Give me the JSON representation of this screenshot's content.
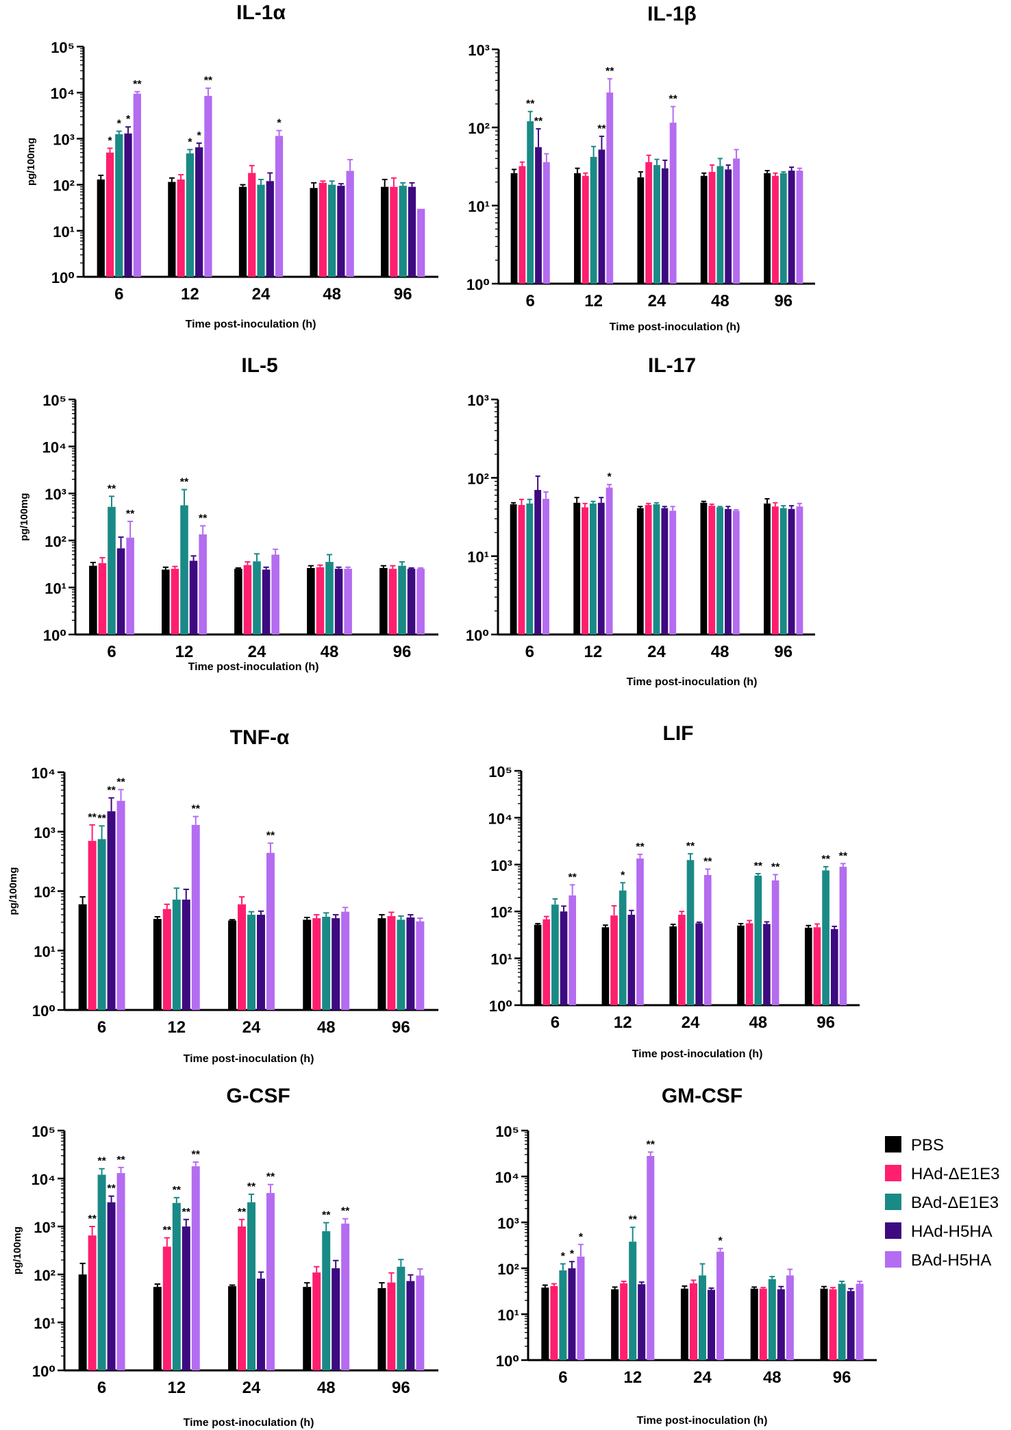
{
  "figure": {
    "xlabel": "Time post-inoculation (h)",
    "ylabel": "pg/100mg",
    "categories": [
      "6",
      "12",
      "24",
      "48",
      "96"
    ],
    "series_colors": [
      "#000000",
      "#ff1f6e",
      "#1a8a86",
      "#3d0a80",
      "#b46cf0"
    ],
    "legend": [
      "PBS",
      "HAd-ΔE1E3",
      "BAd-ΔE1E3",
      "HAd-H5HA",
      "BAd-H5HA"
    ]
  },
  "chart_data": [
    {
      "type": "bar",
      "yscale": "log",
      "title": "IL-1α",
      "ylim_exponents": [
        0,
        5
      ],
      "ylabel": "pg/100mg",
      "xlabel": "Time post-inoculation (h)",
      "categories": [
        "6",
        "12",
        "24",
        "48",
        "96"
      ],
      "series": [
        {
          "name": "PBS",
          "values": [
            130,
            115,
            90,
            85,
            90
          ],
          "errors": [
            30,
            25,
            10,
            25,
            40
          ]
        },
        {
          "name": "HAd-ΔE1E3",
          "values": [
            500,
            130,
            180,
            110,
            90
          ],
          "errors": [
            120,
            35,
            80,
            10,
            50
          ]
        },
        {
          "name": "BAd-ΔE1E3",
          "values": [
            1250,
            480,
            100,
            100,
            95
          ],
          "errors": [
            200,
            100,
            30,
            20,
            15
          ]
        },
        {
          "name": "HAd-H5HA",
          "values": [
            1300,
            650,
            120,
            95,
            90
          ],
          "errors": [
            500,
            150,
            60,
            10,
            20
          ]
        },
        {
          "name": "BAd-H5HA",
          "values": [
            9500,
            8500,
            1150,
            200,
            30
          ],
          "errors": [
            1000,
            4000,
            350,
            150,
            0
          ]
        }
      ],
      "annotations": [
        {
          "category": "6",
          "series": "HAd-ΔE1E3",
          "text": "*"
        },
        {
          "category": "6",
          "series": "BAd-ΔE1E3",
          "text": "*"
        },
        {
          "category": "6",
          "series": "HAd-H5HA",
          "text": "*"
        },
        {
          "category": "6",
          "series": "BAd-H5HA",
          "text": "**"
        },
        {
          "category": "12",
          "series": "BAd-ΔE1E3",
          "text": "*"
        },
        {
          "category": "12",
          "series": "HAd-H5HA",
          "text": "*"
        },
        {
          "category": "12",
          "series": "BAd-H5HA",
          "text": "**"
        },
        {
          "category": "24",
          "series": "BAd-H5HA",
          "text": "*"
        }
      ]
    },
    {
      "type": "bar",
      "yscale": "log",
      "title": "IL-1β",
      "ylim_exponents": [
        0,
        3
      ],
      "ylabel": "",
      "xlabel": "Time post-inoculation (h)",
      "categories": [
        "6",
        "12",
        "24",
        "48",
        "96"
      ],
      "series": [
        {
          "name": "PBS",
          "values": [
            26,
            26,
            23,
            24,
            26
          ],
          "errors": [
            3,
            4,
            4,
            2,
            2
          ]
        },
        {
          "name": "HAd-ΔE1E3",
          "values": [
            32,
            24,
            36,
            27,
            24
          ],
          "errors": [
            4,
            2,
            8,
            6,
            2
          ]
        },
        {
          "name": "BAd-ΔE1E3",
          "values": [
            120,
            42,
            33,
            32,
            26
          ],
          "errors": [
            40,
            15,
            6,
            8,
            1
          ]
        },
        {
          "name": "HAd-H5HA",
          "values": [
            56,
            52,
            30,
            29,
            28
          ],
          "errors": [
            40,
            25,
            8,
            4,
            3
          ]
        },
        {
          "name": "BAd-H5HA",
          "values": [
            36,
            280,
            115,
            40,
            28
          ],
          "errors": [
            10,
            140,
            70,
            12,
            2
          ]
        }
      ],
      "annotations": [
        {
          "category": "6",
          "series": "BAd-ΔE1E3",
          "text": "**"
        },
        {
          "category": "6",
          "series": "HAd-H5HA",
          "text": "**"
        },
        {
          "category": "12",
          "series": "HAd-H5HA",
          "text": "**"
        },
        {
          "category": "12",
          "series": "BAd-H5HA",
          "text": "**"
        },
        {
          "category": "24",
          "series": "BAd-H5HA",
          "text": "**"
        }
      ]
    },
    {
      "type": "bar",
      "yscale": "log",
      "title": "IL-5",
      "ylim_exponents": [
        0,
        5
      ],
      "ylabel": "pg/100mg",
      "xlabel": "Time post-inoculation (h)",
      "categories": [
        "6",
        "12",
        "24",
        "48",
        "96"
      ],
      "series": [
        {
          "name": "PBS",
          "values": [
            29,
            24,
            25,
            26,
            26
          ],
          "errors": [
            5,
            3,
            1,
            3,
            3
          ]
        },
        {
          "name": "HAd-ΔE1E3",
          "values": [
            33,
            25,
            30,
            27,
            25
          ],
          "errors": [
            10,
            3,
            5,
            3,
            4
          ]
        },
        {
          "name": "BAd-ΔE1E3",
          "values": [
            520,
            560,
            36,
            35,
            29
          ],
          "errors": [
            350,
            650,
            16,
            15,
            6
          ]
        },
        {
          "name": "HAd-H5HA",
          "values": [
            68,
            37,
            24,
            25,
            25
          ],
          "errors": [
            50,
            10,
            3,
            2,
            1
          ]
        },
        {
          "name": "BAd-H5HA",
          "values": [
            115,
            135,
            50,
            25,
            25
          ],
          "errors": [
            140,
            70,
            15,
            2,
            1
          ]
        }
      ],
      "annotations": [
        {
          "category": "6",
          "series": "BAd-ΔE1E3",
          "text": "**"
        },
        {
          "category": "6",
          "series": "BAd-H5HA",
          "text": "**"
        },
        {
          "category": "12",
          "series": "BAd-ΔE1E3",
          "text": "**"
        },
        {
          "category": "12",
          "series": "BAd-H5HA",
          "text": "**"
        }
      ]
    },
    {
      "type": "bar",
      "yscale": "log",
      "title": "IL-17",
      "ylim_exponents": [
        0,
        3
      ],
      "ylabel": "",
      "xlabel": "Time post-inoculation (h)",
      "categories": [
        "6",
        "12",
        "24",
        "48",
        "96"
      ],
      "series": [
        {
          "name": "PBS",
          "values": [
            46,
            48,
            41,
            48,
            47
          ],
          "errors": [
            2,
            8,
            2,
            2,
            7
          ]
        },
        {
          "name": "HAd-ΔE1E3",
          "values": [
            45,
            42,
            45,
            44,
            43
          ],
          "errors": [
            8,
            5,
            2,
            2,
            5
          ]
        },
        {
          "name": "BAd-ΔE1E3",
          "values": [
            47,
            47,
            46,
            42,
            41
          ],
          "errors": [
            6,
            3,
            2,
            1,
            3
          ]
        },
        {
          "name": "HAd-H5HA",
          "values": [
            70,
            48,
            41,
            40,
            40
          ],
          "errors": [
            35,
            8,
            2,
            3,
            4
          ]
        },
        {
          "name": "BAd-H5HA",
          "values": [
            54,
            75,
            38,
            38,
            43
          ],
          "errors": [
            12,
            7,
            5,
            1,
            4
          ]
        }
      ],
      "annotations": [
        {
          "category": "12",
          "series": "BAd-H5HA",
          "text": "*"
        }
      ]
    },
    {
      "type": "bar",
      "yscale": "log",
      "title": "TNF-α",
      "ylim_exponents": [
        0,
        4
      ],
      "ylabel": "pg/100mg",
      "xlabel": "Time post-inoculation (h)",
      "categories": [
        "6",
        "12",
        "24",
        "48",
        "96"
      ],
      "series": [
        {
          "name": "PBS",
          "values": [
            60,
            34,
            32,
            33,
            35
          ],
          "errors": [
            20,
            3,
            1,
            3,
            5
          ]
        },
        {
          "name": "HAd-ΔE1E3",
          "values": [
            700,
            50,
            60,
            35,
            38
          ],
          "errors": [
            600,
            10,
            20,
            5,
            6
          ]
        },
        {
          "name": "BAd-ΔE1E3",
          "values": [
            750,
            72,
            40,
            37,
            33
          ],
          "errors": [
            500,
            40,
            5,
            6,
            5
          ]
        },
        {
          "name": "HAd-H5HA",
          "values": [
            2200,
            72,
            40,
            35,
            36
          ],
          "errors": [
            1500,
            35,
            6,
            5,
            4
          ]
        },
        {
          "name": "BAd-H5HA",
          "values": [
            3300,
            1300,
            440,
            45,
            31
          ],
          "errors": [
            1800,
            500,
            200,
            8,
            4
          ]
        }
      ],
      "annotations": [
        {
          "category": "6",
          "series": "HAd-ΔE1E3",
          "text": "**"
        },
        {
          "category": "6",
          "series": "BAd-ΔE1E3",
          "text": "**"
        },
        {
          "category": "6",
          "series": "HAd-H5HA",
          "text": "**"
        },
        {
          "category": "6",
          "series": "BAd-H5HA",
          "text": "**"
        },
        {
          "category": "12",
          "series": "BAd-H5HA",
          "text": "**"
        },
        {
          "category": "24",
          "series": "BAd-H5HA",
          "text": "**"
        }
      ]
    },
    {
      "type": "bar",
      "yscale": "log",
      "title": "LIF",
      "ylim_exponents": [
        0,
        5
      ],
      "ylabel": "",
      "xlabel": "Time post-inoculation (h)",
      "categories": [
        "6",
        "12",
        "24",
        "48",
        "96"
      ],
      "series": [
        {
          "name": "PBS",
          "values": [
            52,
            46,
            48,
            50,
            45
          ],
          "errors": [
            3,
            5,
            5,
            5,
            5
          ]
        },
        {
          "name": "HAd-ΔE1E3",
          "values": [
            68,
            82,
            85,
            56,
            46
          ],
          "errors": [
            10,
            50,
            15,
            8,
            8
          ]
        },
        {
          "name": "BAd-ΔE1E3",
          "values": [
            140,
            280,
            1250,
            580,
            750
          ],
          "errors": [
            45,
            130,
            450,
            60,
            150
          ]
        },
        {
          "name": "HAd-H5HA",
          "values": [
            100,
            85,
            56,
            54,
            42
          ],
          "errors": [
            30,
            20,
            3,
            6,
            6
          ]
        },
        {
          "name": "BAd-H5HA",
          "values": [
            220,
            1350,
            600,
            460,
            900
          ],
          "errors": [
            150,
            300,
            200,
            150,
            150
          ]
        }
      ],
      "annotations": [
        {
          "category": "6",
          "series": "BAd-H5HA",
          "text": "**"
        },
        {
          "category": "12",
          "series": "BAd-ΔE1E3",
          "text": "*"
        },
        {
          "category": "12",
          "series": "BAd-H5HA",
          "text": "**"
        },
        {
          "category": "24",
          "series": "BAd-ΔE1E3",
          "text": "**"
        },
        {
          "category": "24",
          "series": "BAd-H5HA",
          "text": "**"
        },
        {
          "category": "48",
          "series": "BAd-ΔE1E3",
          "text": "**"
        },
        {
          "category": "48",
          "series": "BAd-H5HA",
          "text": "**"
        },
        {
          "category": "96",
          "series": "BAd-ΔE1E3",
          "text": "**"
        },
        {
          "category": "96",
          "series": "BAd-H5HA",
          "text": "**"
        }
      ]
    },
    {
      "type": "bar",
      "yscale": "log",
      "title": "G-CSF",
      "ylim_exponents": [
        0,
        5
      ],
      "ylabel": "pg/100mg",
      "xlabel": "Time post-inoculation (h)",
      "categories": [
        "6",
        "12",
        "24",
        "48",
        "96"
      ],
      "series": [
        {
          "name": "PBS",
          "values": [
            100,
            55,
            57,
            55,
            52
          ],
          "errors": [
            70,
            8,
            3,
            12,
            15
          ]
        },
        {
          "name": "HAd-ΔE1E3",
          "values": [
            650,
            380,
            1000,
            110,
            68
          ],
          "errors": [
            350,
            200,
            400,
            35,
            40
          ]
        },
        {
          "name": "BAd-ΔE1E3",
          "values": [
            12000,
            3100,
            3200,
            800,
            145
          ],
          "errors": [
            4000,
            900,
            1500,
            400,
            60
          ]
        },
        {
          "name": "HAd-H5HA",
          "values": [
            3200,
            1000,
            82,
            135,
            73
          ],
          "errors": [
            1100,
            400,
            30,
            60,
            25
          ]
        },
        {
          "name": "BAd-H5HA",
          "values": [
            13000,
            18000,
            5000,
            1150,
            95
          ],
          "errors": [
            4000,
            4000,
            2500,
            300,
            35
          ]
        }
      ],
      "annotations": [
        {
          "category": "6",
          "series": "HAd-ΔE1E3",
          "text": "**"
        },
        {
          "category": "6",
          "series": "BAd-ΔE1E3",
          "text": "**"
        },
        {
          "category": "6",
          "series": "HAd-H5HA",
          "text": "**"
        },
        {
          "category": "6",
          "series": "BAd-H5HA",
          "text": "**"
        },
        {
          "category": "12",
          "series": "HAd-ΔE1E3",
          "text": "**"
        },
        {
          "category": "12",
          "series": "BAd-ΔE1E3",
          "text": "**"
        },
        {
          "category": "12",
          "series": "HAd-H5HA",
          "text": "**"
        },
        {
          "category": "12",
          "series": "BAd-H5HA",
          "text": "**"
        },
        {
          "category": "24",
          "series": "HAd-ΔE1E3",
          "text": "**"
        },
        {
          "category": "24",
          "series": "BAd-ΔE1E3",
          "text": "**"
        },
        {
          "category": "24",
          "series": "BAd-H5HA",
          "text": "**"
        },
        {
          "category": "48",
          "series": "BAd-ΔE1E3",
          "text": "**"
        },
        {
          "category": "48",
          "series": "BAd-H5HA",
          "text": "**"
        }
      ]
    },
    {
      "type": "bar",
      "yscale": "log",
      "title": "GM-CSF",
      "ylim_exponents": [
        0,
        5
      ],
      "ylabel": "",
      "xlabel": "Time post-inoculation (h)",
      "categories": [
        "6",
        "12",
        "24",
        "48",
        "96"
      ],
      "series": [
        {
          "name": "PBS",
          "values": [
            38,
            35,
            36,
            36,
            36
          ],
          "errors": [
            5,
            4,
            5,
            3,
            4
          ]
        },
        {
          "name": "HAd-ΔE1E3",
          "values": [
            41,
            47,
            47,
            36,
            35
          ],
          "errors": [
            5,
            5,
            8,
            2,
            3
          ]
        },
        {
          "name": "BAd-ΔE1E3",
          "values": [
            90,
            380,
            70,
            58,
            46
          ],
          "errors": [
            35,
            400,
            55,
            8,
            6
          ]
        },
        {
          "name": "HAd-H5HA",
          "values": [
            100,
            45,
            34,
            35,
            32
          ],
          "errors": [
            40,
            5,
            3,
            5,
            4
          ]
        },
        {
          "name": "BAd-H5HA",
          "values": [
            180,
            28000,
            230,
            70,
            46
          ],
          "errors": [
            150,
            6000,
            40,
            25,
            6
          ]
        }
      ],
      "annotations": [
        {
          "category": "6",
          "series": "BAd-ΔE1E3",
          "text": "*"
        },
        {
          "category": "6",
          "series": "HAd-H5HA",
          "text": "*"
        },
        {
          "category": "6",
          "series": "BAd-H5HA",
          "text": "*"
        },
        {
          "category": "12",
          "series": "BAd-ΔE1E3",
          "text": "**"
        },
        {
          "category": "12",
          "series": "BAd-H5HA",
          "text": "**"
        },
        {
          "category": "24",
          "series": "BAd-H5HA",
          "text": "*"
        }
      ]
    }
  ]
}
